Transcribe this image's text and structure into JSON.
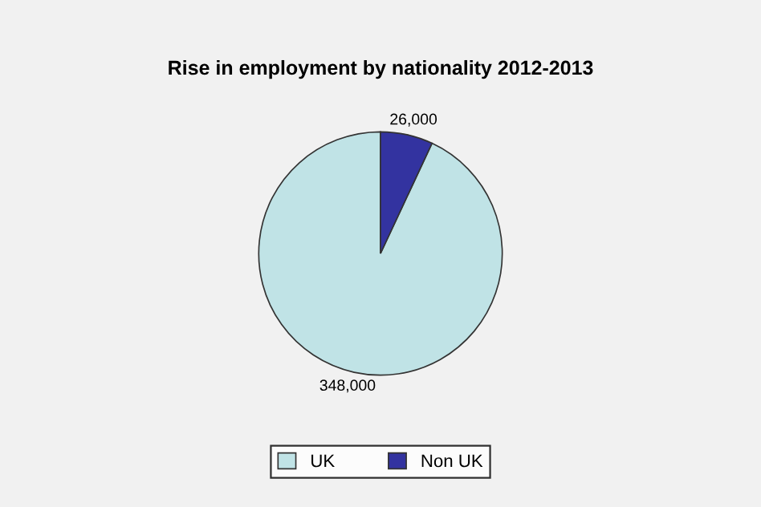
{
  "chart_data": {
    "type": "pie",
    "title": "Rise in employment by nationality 2012-2013",
    "categories": [
      "UK",
      "Non UK"
    ],
    "values": [
      348000,
      26000
    ],
    "colors": [
      "#c0e3e6",
      "#3333a0"
    ],
    "value_labels": [
      "348,000",
      "26,000"
    ],
    "legend": "bottom"
  }
}
